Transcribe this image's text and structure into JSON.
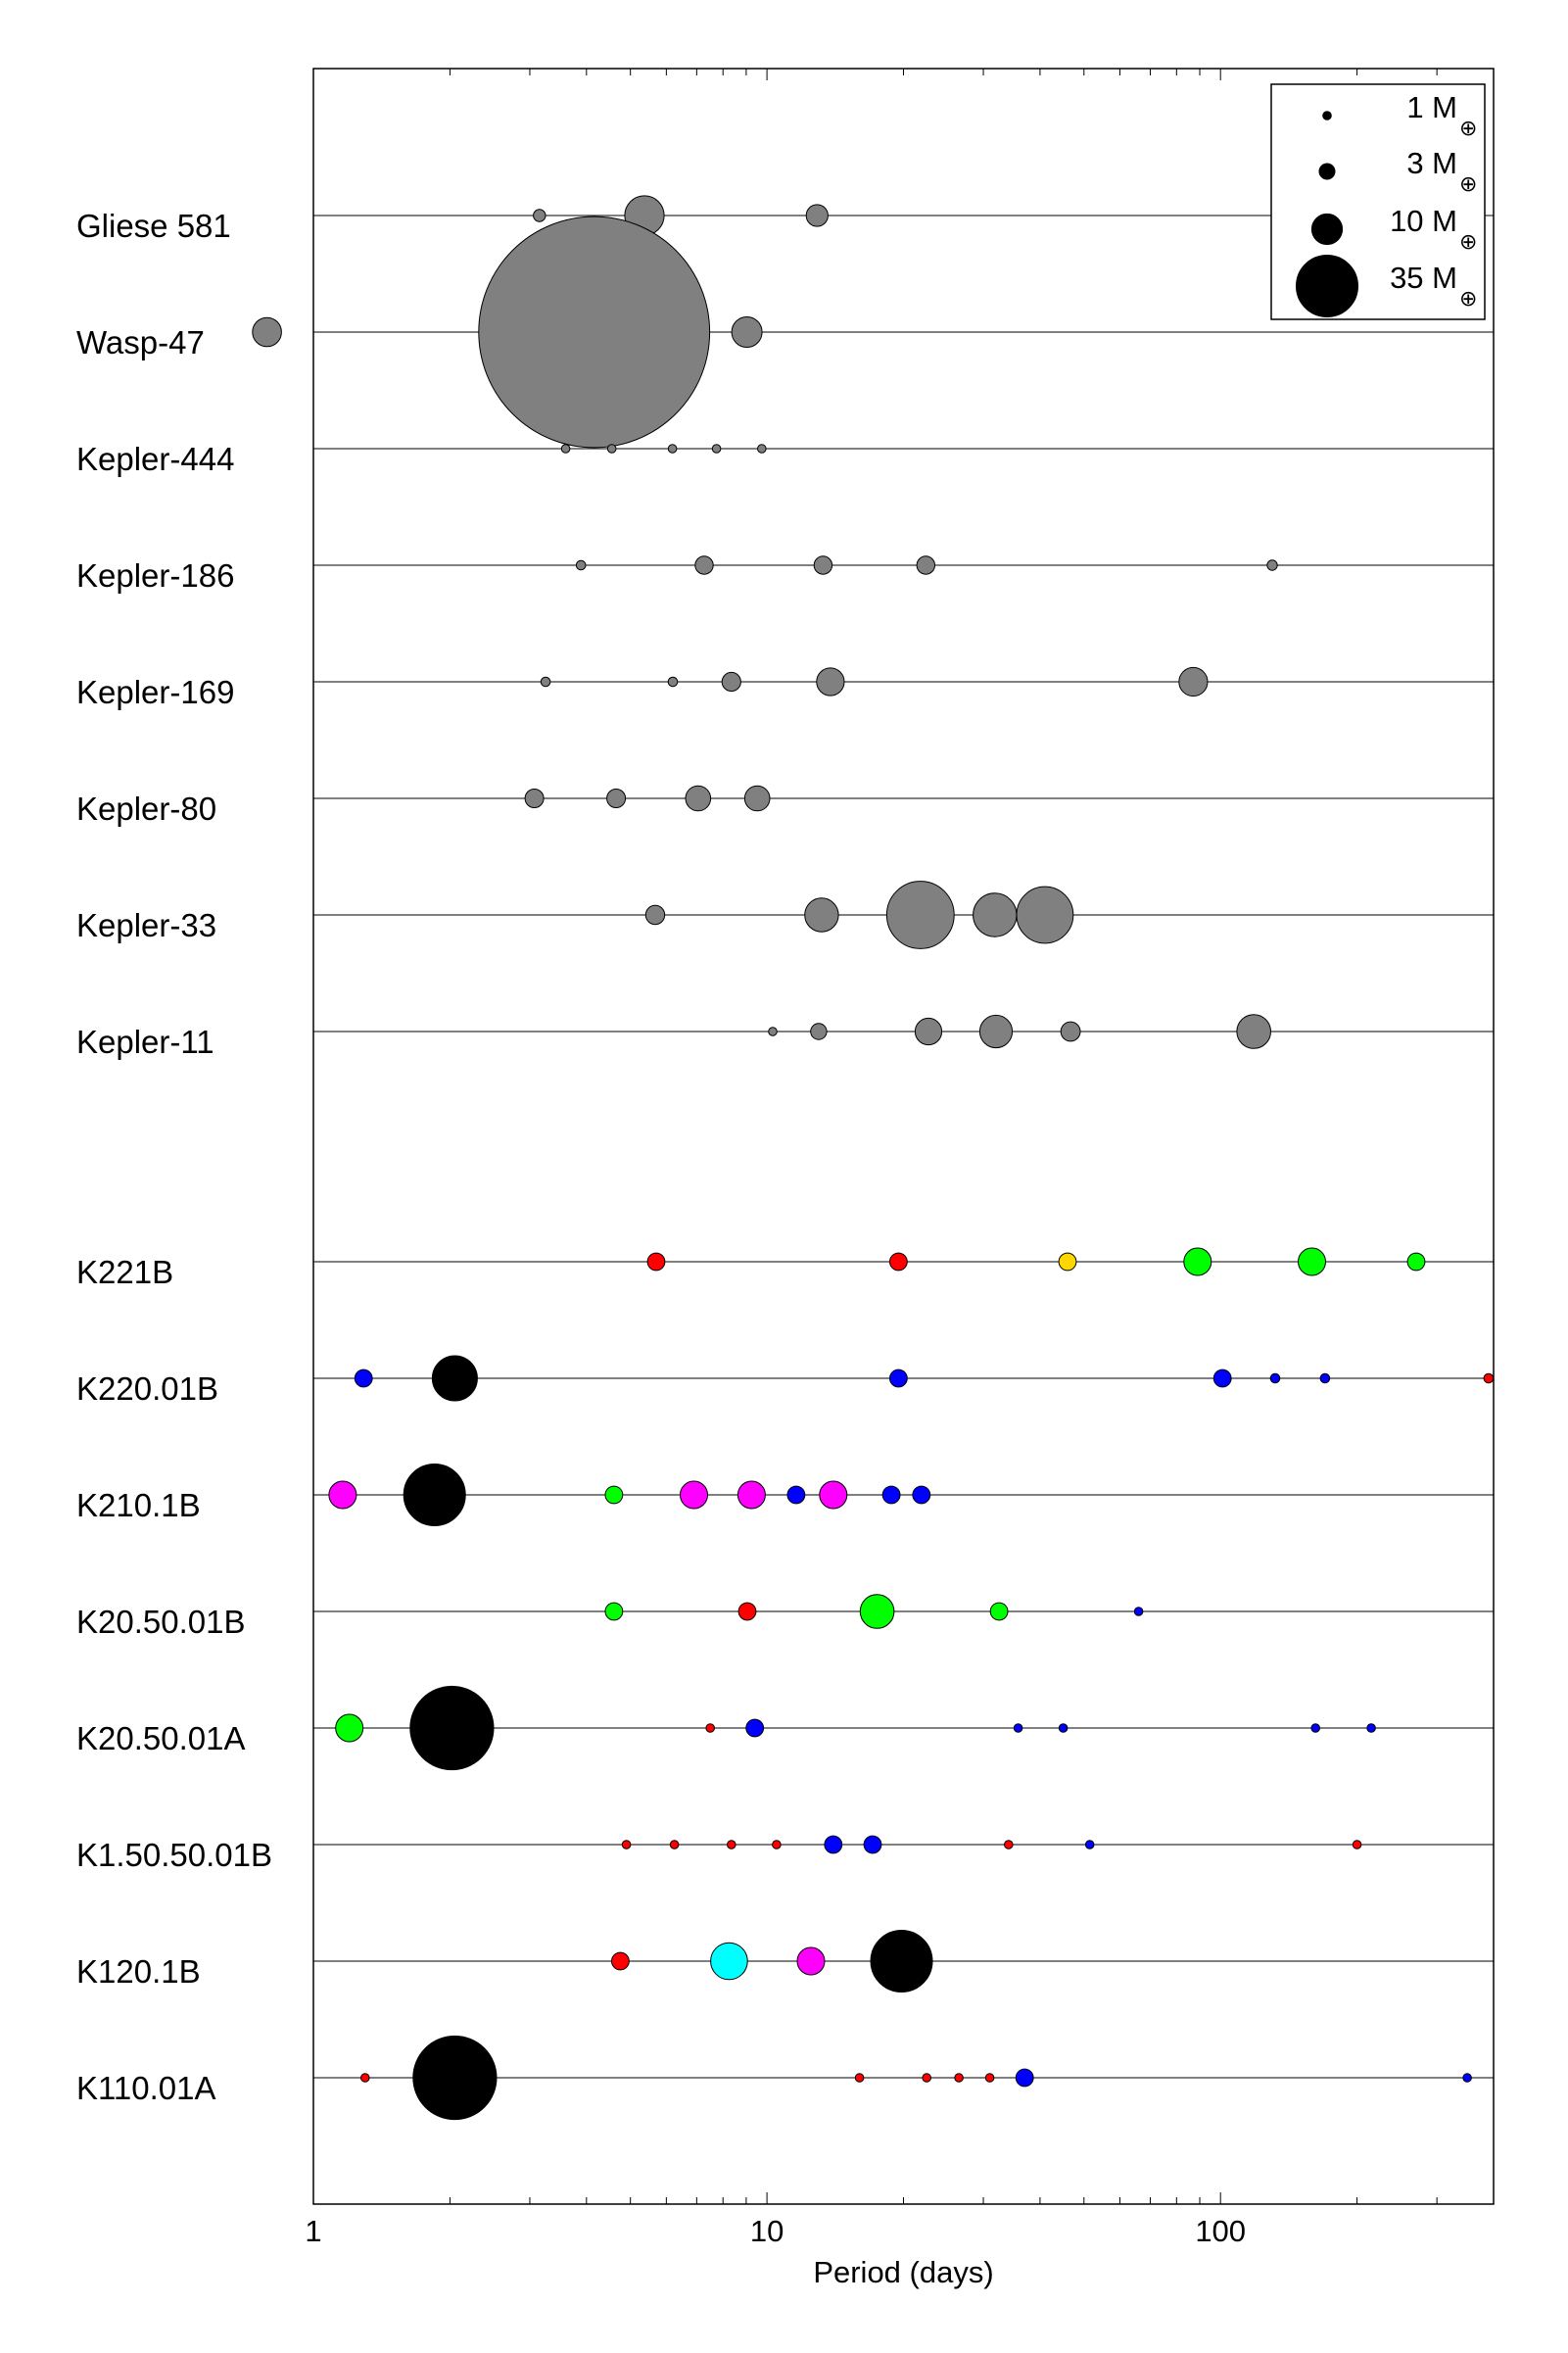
{
  "chart_data": {
    "type": "scatter",
    "xlabel": "Period (days)",
    "xscale": "log",
    "xlim": [
      1,
      400
    ],
    "xticks": [
      {
        "value": 1,
        "label": "1"
      },
      {
        "value": 10,
        "label": "10"
      },
      {
        "value": 100,
        "label": "100"
      }
    ],
    "legend": {
      "position": "top-right",
      "unit_symbol": "M",
      "unit_subscript": "⊕",
      "entries": [
        {
          "mass": 1,
          "label": "1"
        },
        {
          "mass": 3,
          "label": "3"
        },
        {
          "mass": 10,
          "label": "10"
        },
        {
          "mass": 35,
          "label": "35"
        }
      ]
    },
    "colors": {
      "gray": "#808080",
      "black": "#000000",
      "red": "#ff0000",
      "green": "#00ff00",
      "blue": "#0000ff",
      "magenta": "#ff00ff",
      "cyan": "#00ffff",
      "yellow": "#ffd700"
    },
    "systems": [
      {
        "name": "Gliese 581",
        "planets": [
          {
            "period": 3.15,
            "mass": 1.9,
            "color": "gray"
          },
          {
            "period": 5.37,
            "mass": 15.7,
            "color": "gray"
          },
          {
            "period": 12.9,
            "mass": 5.4,
            "color": "gray"
          }
        ]
      },
      {
        "name": "Wasp-47",
        "planets": [
          {
            "period": 0.79,
            "mass": 9.1,
            "color": "gray"
          },
          {
            "period": 4.16,
            "mass": 370,
            "color": "gray"
          },
          {
            "period": 9.03,
            "mass": 9.9,
            "color": "gray"
          }
        ]
      },
      {
        "name": "Kepler-444",
        "planets": [
          {
            "period": 3.6,
            "mass": 1,
            "color": "gray"
          },
          {
            "period": 4.55,
            "mass": 1,
            "color": "gray"
          },
          {
            "period": 6.19,
            "mass": 1,
            "color": "gray"
          },
          {
            "period": 7.74,
            "mass": 1,
            "color": "gray"
          },
          {
            "period": 9.74,
            "mass": 1,
            "color": "gray"
          }
        ]
      },
      {
        "name": "Kepler-186",
        "planets": [
          {
            "period": 3.89,
            "mass": 1.2,
            "color": "gray"
          },
          {
            "period": 7.27,
            "mass": 3.9,
            "color": "gray"
          },
          {
            "period": 13.3,
            "mass": 3.9,
            "color": "gray"
          },
          {
            "period": 22.4,
            "mass": 3.9,
            "color": "gray"
          },
          {
            "period": 130,
            "mass": 1.4,
            "color": "gray"
          }
        ]
      },
      {
        "name": "Kepler-169",
        "planets": [
          {
            "period": 3.25,
            "mass": 1.2,
            "color": "gray"
          },
          {
            "period": 6.2,
            "mass": 1.2,
            "color": "gray"
          },
          {
            "period": 8.35,
            "mass": 4.2,
            "color": "gray"
          },
          {
            "period": 13.8,
            "mass": 8.3,
            "color": "gray"
          },
          {
            "period": 87.1,
            "mass": 8.9,
            "color": "gray"
          }
        ]
      },
      {
        "name": "Kepler-80",
        "planets": [
          {
            "period": 3.07,
            "mass": 4.1,
            "color": "gray"
          },
          {
            "period": 4.65,
            "mass": 4.1,
            "color": "gray"
          },
          {
            "period": 7.05,
            "mass": 7,
            "color": "gray"
          },
          {
            "period": 9.52,
            "mass": 7,
            "color": "gray"
          }
        ]
      },
      {
        "name": "Kepler-33",
        "planets": [
          {
            "period": 5.67,
            "mass": 4.3,
            "color": "gray"
          },
          {
            "period": 13.2,
            "mass": 11.9,
            "color": "gray"
          },
          {
            "period": 21.8,
            "mass": 41,
            "color": "gray"
          },
          {
            "period": 31.8,
            "mass": 18.7,
            "color": "gray"
          },
          {
            "period": 41,
            "mass": 30,
            "color": "gray"
          }
        ]
      },
      {
        "name": "Kepler-11",
        "planets": [
          {
            "period": 10.3,
            "mass": 1,
            "color": "gray"
          },
          {
            "period": 13,
            "mass": 3.2,
            "color": "gray"
          },
          {
            "period": 22.7,
            "mass": 7.8,
            "color": "gray"
          },
          {
            "period": 32,
            "mass": 11.1,
            "color": "gray"
          },
          {
            "period": 46.7,
            "mass": 4.4,
            "color": "gray"
          },
          {
            "period": 118.4,
            "mass": 12,
            "color": "gray"
          }
        ]
      },
      {
        "name": "K221B",
        "planets": [
          {
            "period": 5.7,
            "mass": 3.7,
            "color": "red"
          },
          {
            "period": 19.5,
            "mass": 3.7,
            "color": "red"
          },
          {
            "period": 46,
            "mass": 3.7,
            "color": "yellow"
          },
          {
            "period": 89,
            "mass": 8.2,
            "color": "green"
          },
          {
            "period": 159,
            "mass": 8.2,
            "color": "green"
          },
          {
            "period": 270,
            "mass": 3.7,
            "color": "green"
          }
        ]
      },
      {
        "name": "K220.01B",
        "planets": [
          {
            "period": 1.29,
            "mass": 3.7,
            "color": "blue"
          },
          {
            "period": 2.05,
            "mass": 20,
            "color": "black"
          },
          {
            "period": 19.5,
            "mass": 3.7,
            "color": "blue"
          },
          {
            "period": 101,
            "mass": 3.7,
            "color": "blue"
          },
          {
            "period": 132,
            "mass": 1.2,
            "color": "blue"
          },
          {
            "period": 170,
            "mass": 1.2,
            "color": "blue"
          },
          {
            "period": 390,
            "mass": 1.2,
            "color": "red"
          }
        ]
      },
      {
        "name": "K210.1B",
        "planets": [
          {
            "period": 1.16,
            "mass": 8.2,
            "color": "magenta"
          },
          {
            "period": 1.85,
            "mass": 35,
            "color": "black"
          },
          {
            "period": 4.6,
            "mass": 3.7,
            "color": "green"
          },
          {
            "period": 6.9,
            "mass": 8.2,
            "color": "magenta"
          },
          {
            "period": 9.25,
            "mass": 8.2,
            "color": "magenta"
          },
          {
            "period": 11.6,
            "mass": 3.7,
            "color": "blue"
          },
          {
            "period": 14,
            "mass": 8.2,
            "color": "magenta"
          },
          {
            "period": 18.8,
            "mass": 3.7,
            "color": "blue"
          },
          {
            "period": 21.9,
            "mass": 3.7,
            "color": "blue"
          }
        ]
      },
      {
        "name": "K20.50.01B",
        "planets": [
          {
            "period": 4.6,
            "mass": 3.7,
            "color": "green"
          },
          {
            "period": 9.05,
            "mass": 3.7,
            "color": "red"
          },
          {
            "period": 17.5,
            "mass": 12,
            "color": "green"
          },
          {
            "period": 32.5,
            "mass": 3.7,
            "color": "green"
          },
          {
            "period": 66,
            "mass": 1,
            "color": "blue"
          }
        ]
      },
      {
        "name": "K20.50.01A",
        "planets": [
          {
            "period": 1.2,
            "mass": 8.2,
            "color": "green"
          },
          {
            "period": 2.02,
            "mass": 60,
            "color": "black"
          },
          {
            "period": 7.5,
            "mass": 1,
            "color": "red"
          },
          {
            "period": 9.4,
            "mass": 3.7,
            "color": "blue"
          },
          {
            "period": 35.8,
            "mass": 1,
            "color": "blue"
          },
          {
            "period": 45,
            "mass": 1,
            "color": "blue"
          },
          {
            "period": 162,
            "mass": 1,
            "color": "blue"
          },
          {
            "period": 215,
            "mass": 1,
            "color": "blue"
          }
        ]
      },
      {
        "name": "K1.50.50.01B",
        "planets": [
          {
            "period": 4.9,
            "mass": 1,
            "color": "red"
          },
          {
            "period": 6.25,
            "mass": 1,
            "color": "red"
          },
          {
            "period": 8.35,
            "mass": 1,
            "color": "red"
          },
          {
            "period": 10.5,
            "mass": 1,
            "color": "red"
          },
          {
            "period": 14,
            "mass": 3.7,
            "color": "blue"
          },
          {
            "period": 17.1,
            "mass": 3.7,
            "color": "blue"
          },
          {
            "period": 34.1,
            "mass": 1,
            "color": "red"
          },
          {
            "period": 51.5,
            "mass": 1,
            "color": "blue"
          },
          {
            "period": 200,
            "mass": 1,
            "color": "red"
          }
        ]
      },
      {
        "name": "K120.1B",
        "planets": [
          {
            "period": 4.75,
            "mass": 3.7,
            "color": "red"
          },
          {
            "period": 8.25,
            "mass": 14,
            "color": "cyan"
          },
          {
            "period": 12.5,
            "mass": 8.2,
            "color": "magenta"
          },
          {
            "period": 19.8,
            "mass": 35,
            "color": "black"
          }
        ]
      },
      {
        "name": "K110.01A",
        "planets": [
          {
            "period": 1.3,
            "mass": 1,
            "color": "red"
          },
          {
            "period": 2.05,
            "mass": 60,
            "color": "black"
          },
          {
            "period": 16,
            "mass": 1,
            "color": "red"
          },
          {
            "period": 22.5,
            "mass": 1,
            "color": "red"
          },
          {
            "period": 26.5,
            "mass": 1,
            "color": "red"
          },
          {
            "period": 31,
            "mass": 1,
            "color": "red"
          },
          {
            "period": 37,
            "mass": 3.7,
            "color": "blue"
          },
          {
            "period": 350,
            "mass": 1,
            "color": "blue"
          }
        ]
      }
    ]
  }
}
